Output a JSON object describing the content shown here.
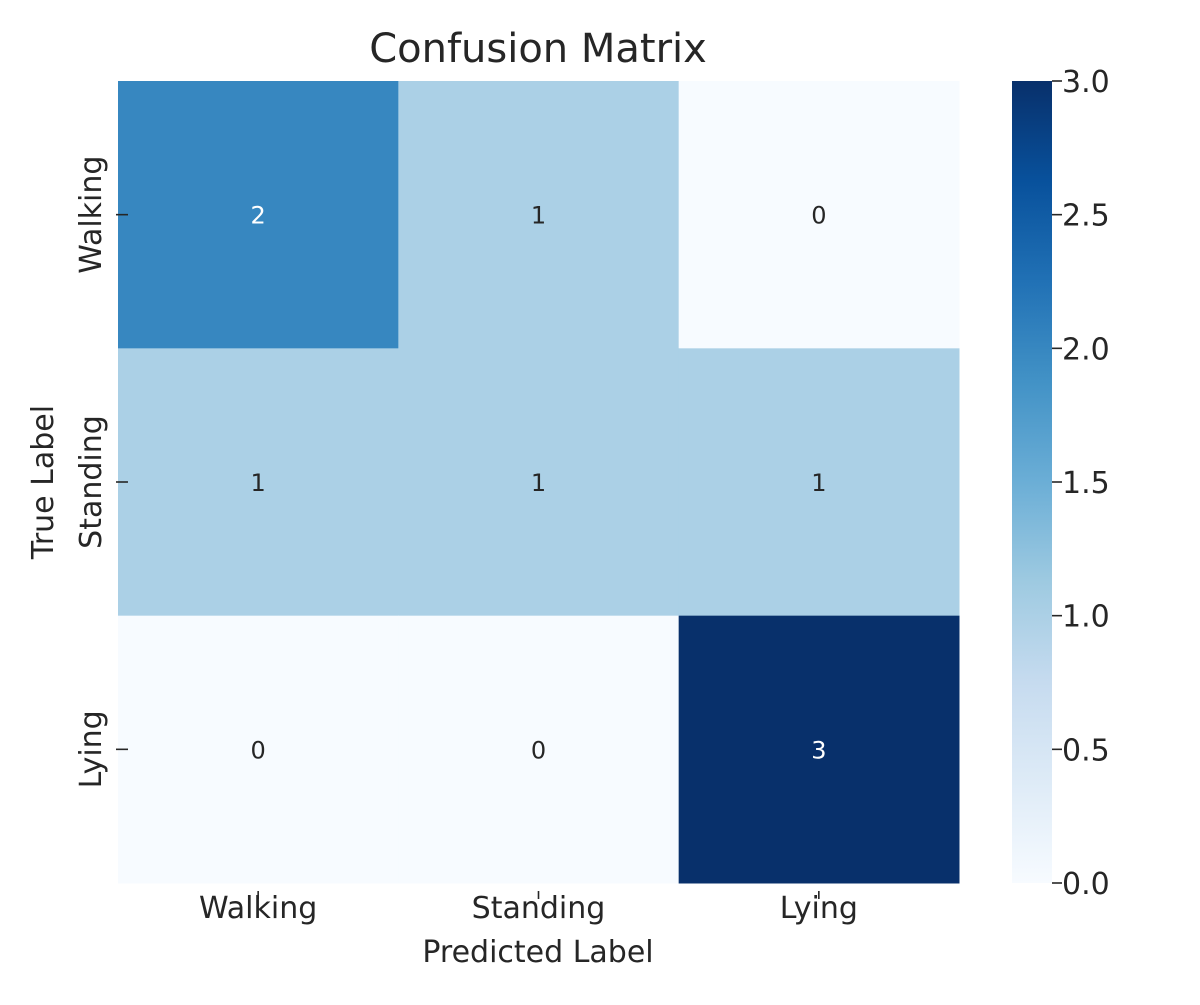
{
  "chart_data": {
    "type": "heatmap",
    "title": "Confusion Matrix",
    "xlabel": "Predicted Label",
    "ylabel": "True Label",
    "x_categories": [
      "Walking",
      "Standing",
      "Lying"
    ],
    "y_categories": [
      "Walking",
      "Standing",
      "Lying"
    ],
    "values": [
      [
        2,
        1,
        0
      ],
      [
        1,
        1,
        1
      ],
      [
        0,
        0,
        3
      ]
    ],
    "annotations": true,
    "colormap": "Blues",
    "vmin": 0,
    "vmax": 3,
    "colorbar": {
      "ticks": [
        "0.0",
        "0.5",
        "1.0",
        "1.5",
        "2.0",
        "2.5",
        "3.0"
      ]
    }
  },
  "colors": {
    "text": "#262626",
    "annotation_dark": "#262626",
    "annotation_light": "#ffffff"
  }
}
